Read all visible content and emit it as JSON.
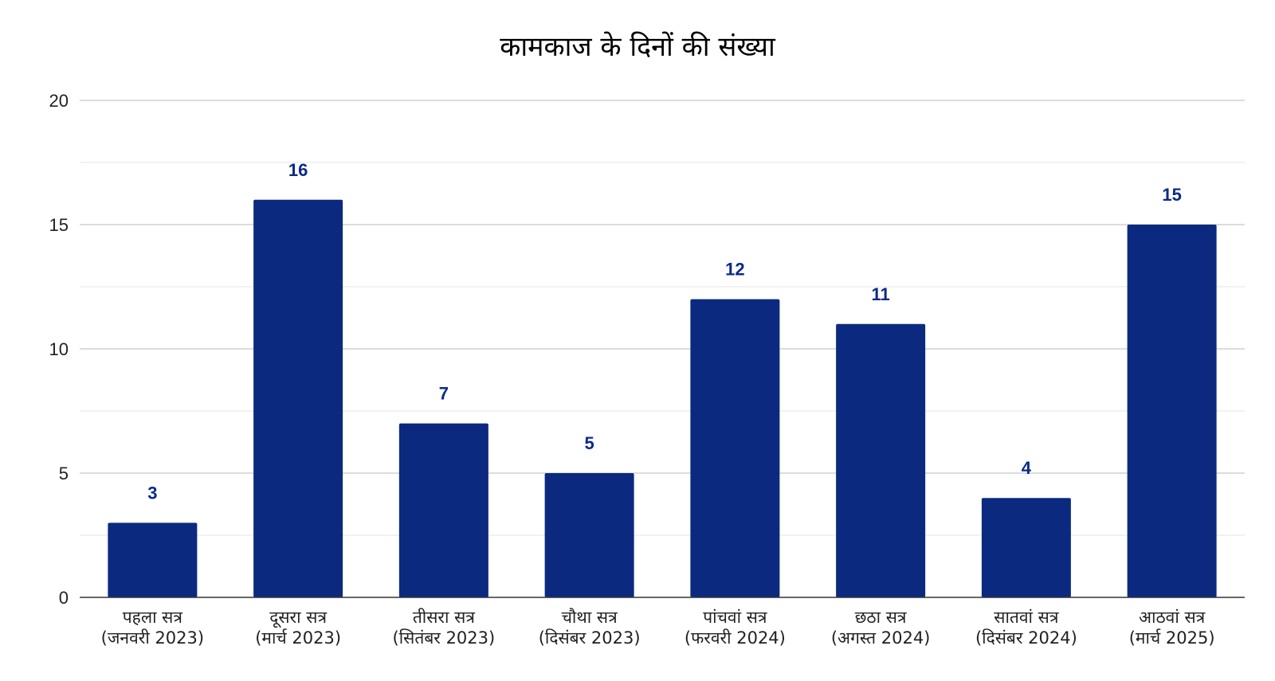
{
  "chart_data": {
    "type": "bar",
    "title": "कामकाज के दिनों की संख्या",
    "xlabel": "",
    "ylabel": "",
    "ylim": [
      0,
      20
    ],
    "yticks": [
      "0",
      "5",
      "10",
      "15",
      "20"
    ],
    "grid": true,
    "legend": "none",
    "bar_color": "#0b2a7f",
    "label_color": "#0b2a8a",
    "categories": [
      [
        "पहला सत्र",
        "(जनवरी 2023)"
      ],
      [
        "दूसरा सत्र",
        "(मार्च 2023)"
      ],
      [
        "तीसरा सत्र",
        "(सितंबर 2023)"
      ],
      [
        "चौथा सत्र",
        "(दिसंबर 2023)"
      ],
      [
        "पांचवां सत्र",
        "(फरवरी 2024)"
      ],
      [
        "छठा सत्र",
        "(अगस्त 2024)"
      ],
      [
        "सातवां सत्र",
        "(दिसंबर 2024)"
      ],
      [
        "आठवां सत्र",
        "(मार्च 2025)"
      ]
    ],
    "values": [
      3,
      16,
      7,
      5,
      12,
      11,
      4,
      15
    ]
  }
}
